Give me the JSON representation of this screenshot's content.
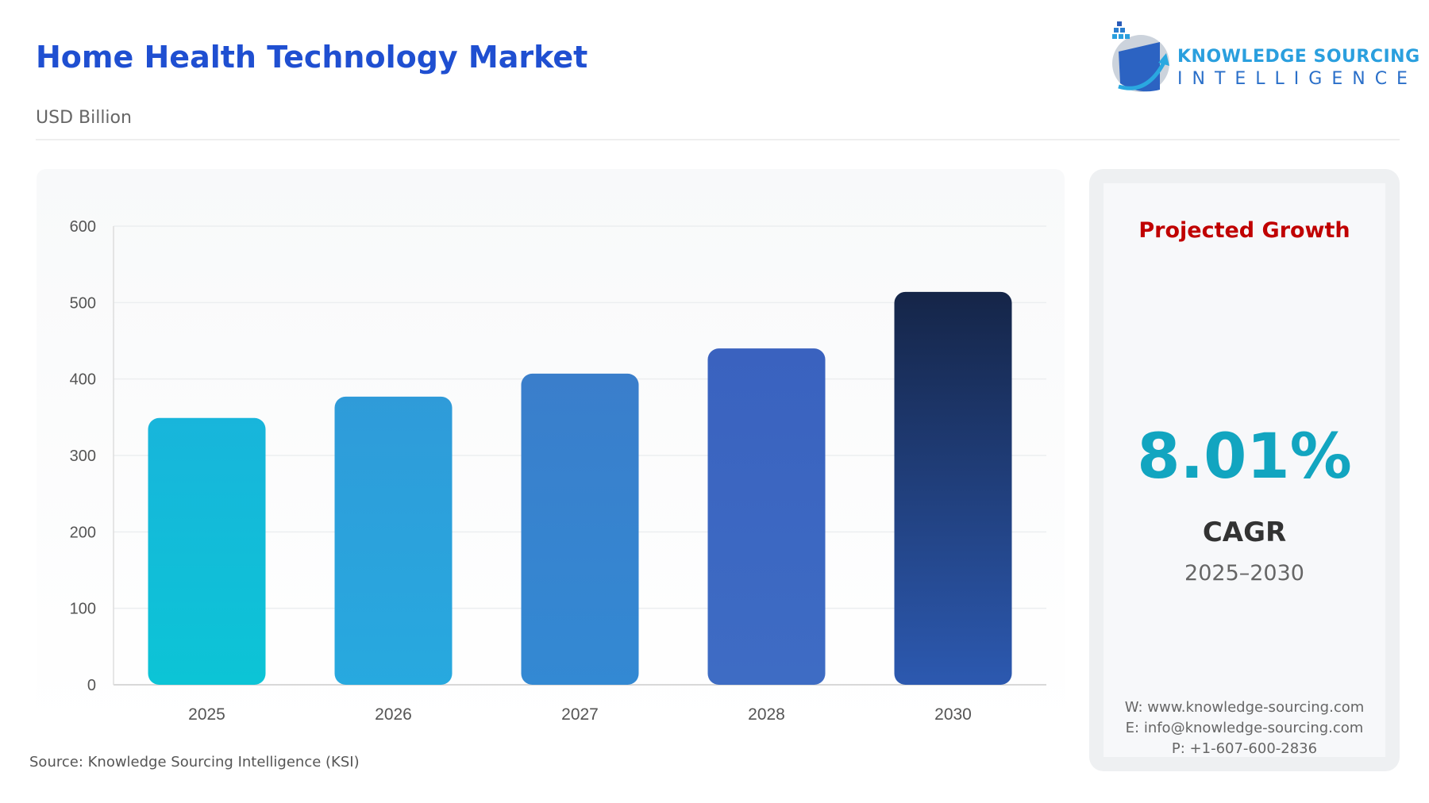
{
  "header": {
    "title": "Home Health Technology Market",
    "subtitle": "USD Billion"
  },
  "logo": {
    "line1": "KNOWLEDGE SOURCING",
    "line2": "INTELLIGENCE"
  },
  "source": "Source: Knowledge Sourcing Intelligence (KSI)",
  "side": {
    "heading": "Projected Growth",
    "cagr_value": "8.01%",
    "cagr_label": "CAGR",
    "period": "2025–2030",
    "website": "W: www.knowledge-sourcing.com",
    "email": "E: info@knowledge-sourcing.com",
    "phone": "P: +1-607-600-2836"
  },
  "chart_data": {
    "type": "bar",
    "title": "Home Health Technology Market",
    "ylabel": "USD Billion",
    "xlabel": "",
    "categories": [
      "2025",
      "2026",
      "2027",
      "2028",
      "2030"
    ],
    "values": [
      349,
      377,
      407,
      440,
      514
    ],
    "ylim": [
      0,
      600
    ],
    "yticks": [
      0,
      100,
      200,
      300,
      400,
      500,
      600
    ],
    "grid": true,
    "colors": [
      [
        "#0cc4d6",
        "#18b5db"
      ],
      [
        "#27a9df",
        "#2f9bd9"
      ],
      [
        "#3389d3",
        "#3a7ecb"
      ],
      [
        "#3e6cc4",
        "#3a62bf"
      ],
      [
        "#2c59b0",
        "#152548"
      ]
    ]
  }
}
